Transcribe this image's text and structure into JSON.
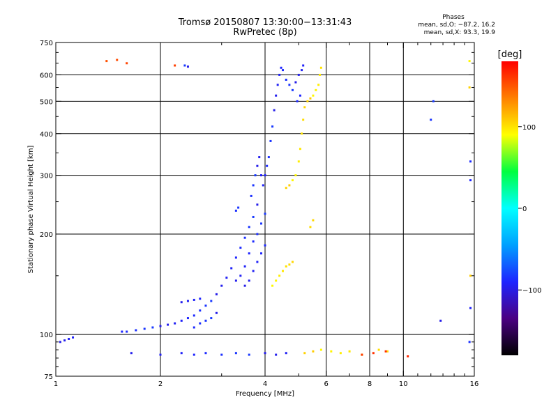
{
  "title": {
    "line1": "Tromsø 20150807 13:30:00−13:31:43",
    "line2": "RwPretec (8p)"
  },
  "stats": {
    "heading": "Phases",
    "line_o": "mean, sd,O: −87.2, 16.2",
    "line_x": "mean, sd,X:  93.3, 19.9"
  },
  "colorbar": {
    "label": "[deg]",
    "ticks": [
      {
        "value": 100,
        "label": "100"
      },
      {
        "value": 0,
        "label": "0"
      },
      {
        "value": -100,
        "label": "−100"
      }
    ],
    "range": [
      -180,
      180
    ],
    "colors": [
      "#000000",
      "#4b0082",
      "#1e24ff",
      "#00a0ff",
      "#00ffff",
      "#00ff40",
      "#ffff00",
      "#ff8000",
      "#ff0000"
    ]
  },
  "chart_data": {
    "type": "scatter",
    "title": "Tromsø 20150807 13:30:00−13:31:43",
    "subtitle": "RwPretec (8p)",
    "xlabel": "Frequency [MHz]",
    "ylabel": "Stationary phase Virtual Height [km]",
    "xscale": "log",
    "yscale": "log",
    "xlim": [
      1,
      16
    ],
    "ylim": [
      75,
      750
    ],
    "xticks": [
      1,
      2,
      4,
      6,
      8,
      10,
      16
    ],
    "xtick_labels": [
      "1",
      "2",
      "4",
      "6",
      "8",
      "10",
      "16"
    ],
    "x_gridlines": [
      2,
      4,
      6,
      8,
      10
    ],
    "yticks": [
      75,
      100,
      200,
      300,
      400,
      500,
      600,
      750
    ],
    "ytick_labels": [
      "75",
      "100",
      "200",
      "300",
      "400",
      "500",
      "600",
      "750"
    ],
    "y_gridlines": [
      100,
      200,
      300,
      400,
      500,
      600
    ],
    "grid": true,
    "color_scale": "phase [deg]",
    "series": [
      {
        "mode": "O",
        "color_phase": -90,
        "points": [
          [
            1.03,
            95
          ],
          [
            1.06,
            96
          ],
          [
            1.09,
            97
          ],
          [
            1.12,
            98
          ],
          [
            1.55,
            102
          ],
          [
            1.6,
            102
          ],
          [
            1.7,
            103
          ],
          [
            1.8,
            104
          ],
          [
            1.9,
            105
          ],
          [
            2.0,
            106
          ],
          [
            2.1,
            107
          ],
          [
            2.2,
            108
          ],
          [
            2.3,
            110
          ],
          [
            2.4,
            112
          ],
          [
            2.5,
            114
          ],
          [
            2.6,
            118
          ],
          [
            2.7,
            122
          ],
          [
            2.8,
            126
          ],
          [
            2.9,
            132
          ],
          [
            2.3,
            125
          ],
          [
            2.4,
            126
          ],
          [
            2.5,
            127
          ],
          [
            2.6,
            128
          ],
          [
            2.5,
            105
          ],
          [
            2.6,
            108
          ],
          [
            2.7,
            110
          ],
          [
            2.8,
            112
          ],
          [
            2.9,
            116
          ],
          [
            3.0,
            140
          ],
          [
            3.1,
            148
          ],
          [
            3.2,
            158
          ],
          [
            3.3,
            170
          ],
          [
            3.4,
            182
          ],
          [
            3.5,
            195
          ],
          [
            3.6,
            210
          ],
          [
            3.7,
            225
          ],
          [
            3.8,
            245
          ],
          [
            3.3,
            145
          ],
          [
            3.4,
            150
          ],
          [
            3.5,
            160
          ],
          [
            3.6,
            175
          ],
          [
            3.7,
            190
          ],
          [
            3.8,
            200
          ],
          [
            3.9,
            215
          ],
          [
            4.0,
            230
          ],
          [
            3.5,
            140
          ],
          [
            3.6,
            145
          ],
          [
            3.7,
            155
          ],
          [
            3.8,
            165
          ],
          [
            3.9,
            175
          ],
          [
            4.0,
            185
          ],
          [
            3.65,
            260
          ],
          [
            3.7,
            280
          ],
          [
            3.75,
            300
          ],
          [
            3.8,
            320
          ],
          [
            3.85,
            340
          ],
          [
            3.9,
            300
          ],
          [
            3.95,
            280
          ],
          [
            4.0,
            300
          ],
          [
            4.05,
            320
          ],
          [
            4.1,
            340
          ],
          [
            4.15,
            380
          ],
          [
            4.2,
            420
          ],
          [
            4.25,
            470
          ],
          [
            4.3,
            520
          ],
          [
            4.35,
            560
          ],
          [
            4.4,
            600
          ],
          [
            4.45,
            630
          ],
          [
            4.5,
            620
          ],
          [
            4.6,
            580
          ],
          [
            4.7,
            560
          ],
          [
            4.8,
            540
          ],
          [
            4.9,
            570
          ],
          [
            5.0,
            600
          ],
          [
            5.1,
            620
          ],
          [
            5.15,
            640
          ],
          [
            5.05,
            520
          ],
          [
            4.95,
            500
          ],
          [
            3.3,
            235
          ],
          [
            3.35,
            240
          ],
          [
            2.35,
            640
          ],
          [
            2.4,
            635
          ],
          [
            1.65,
            88
          ],
          [
            2.0,
            87
          ],
          [
            2.3,
            88
          ],
          [
            2.5,
            87
          ],
          [
            2.7,
            88
          ],
          [
            3.0,
            87
          ],
          [
            3.3,
            88
          ],
          [
            3.6,
            87
          ],
          [
            4.0,
            88
          ],
          [
            4.3,
            87
          ],
          [
            4.6,
            88
          ],
          [
            15.6,
            120
          ],
          [
            15.6,
            290
          ],
          [
            15.6,
            330
          ],
          [
            15.5,
            95
          ],
          [
            12.0,
            440
          ],
          [
            12.2,
            500
          ],
          [
            12.8,
            110
          ]
        ]
      },
      {
        "mode": "X",
        "color_phase": 100,
        "points": [
          [
            4.2,
            140
          ],
          [
            4.3,
            145
          ],
          [
            4.4,
            150
          ],
          [
            4.5,
            155
          ],
          [
            4.6,
            160
          ],
          [
            4.7,
            162
          ],
          [
            4.8,
            165
          ],
          [
            4.6,
            275
          ],
          [
            4.7,
            280
          ],
          [
            4.8,
            290
          ],
          [
            4.9,
            300
          ],
          [
            5.0,
            330
          ],
          [
            5.05,
            360
          ],
          [
            5.1,
            400
          ],
          [
            5.15,
            440
          ],
          [
            5.2,
            480
          ],
          [
            5.3,
            500
          ],
          [
            5.4,
            510
          ],
          [
            5.5,
            520
          ],
          [
            5.6,
            540
          ],
          [
            5.7,
            560
          ],
          [
            5.75,
            600
          ],
          [
            5.8,
            630
          ],
          [
            5.4,
            210
          ],
          [
            5.5,
            220
          ],
          [
            5.2,
            88
          ],
          [
            5.5,
            89
          ],
          [
            5.8,
            90
          ],
          [
            6.2,
            89
          ],
          [
            6.6,
            88
          ],
          [
            7.0,
            89
          ],
          [
            7.6,
            87
          ],
          [
            8.5,
            90
          ],
          [
            9.0,
            89
          ],
          [
            15.5,
            550
          ],
          [
            15.6,
            150
          ],
          [
            15.5,
            660
          ]
        ]
      },
      {
        "mode": "mixed",
        "color_phase": 160,
        "points": [
          [
            1.4,
            660
          ],
          [
            1.5,
            665
          ],
          [
            1.6,
            650
          ],
          [
            2.2,
            640
          ],
          [
            7.6,
            87
          ],
          [
            8.2,
            88
          ],
          [
            8.9,
            89
          ],
          [
            10.3,
            86
          ]
        ]
      }
    ]
  }
}
